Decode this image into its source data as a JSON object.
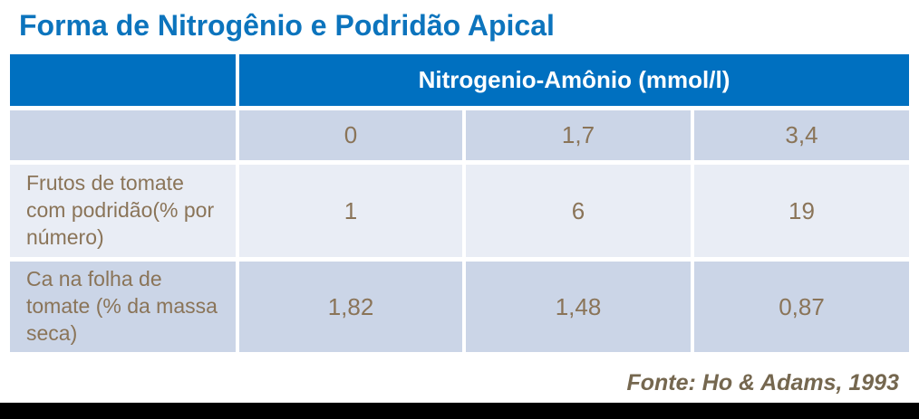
{
  "title": "Forma de Nitrogênio e Podridão Apical",
  "source": "Fonte: Ho & Adams, 1993",
  "colors": {
    "title_blue": "#0c74bd",
    "header_blue": "#0070c0",
    "band_dark": "#cbd5e7",
    "band_light": "#e9edf5",
    "cell_text_brown": "#8a7458",
    "source_text": "#75674f",
    "footer_bar": "#000000",
    "header_text": "#ffffff"
  },
  "table": {
    "header_label": "Nitrogenio-Amônio (mmol/l)",
    "dose_values": [
      "0",
      "1,7",
      "3,4"
    ],
    "rows": [
      {
        "label": "Frutos de tomate com podridão(% por número)",
        "values": [
          "1",
          "6",
          "19"
        ]
      },
      {
        "label": "Ca na folha de tomate (% da massa seca)",
        "values": [
          "1,82",
          "1,48",
          "0,87"
        ]
      }
    ]
  },
  "chart_data": {
    "type": "table",
    "title": "Forma de Nitrogênio e Podridão Apical",
    "column_group_header": "Nitrogenio-Amônio (mmol/l)",
    "x_label": "Nitrogênio-Amônio (mmol/l)",
    "categories": [
      0,
      1.7,
      3.4
    ],
    "series": [
      {
        "name": "Frutos de tomate com podridão(% por número)",
        "values": [
          1,
          6,
          19
        ]
      },
      {
        "name": "Ca na folha de tomate (% da massa seca)",
        "values": [
          1.82,
          1.48,
          0.87
        ]
      }
    ],
    "source": "Fonte: Ho & Adams, 1993"
  }
}
